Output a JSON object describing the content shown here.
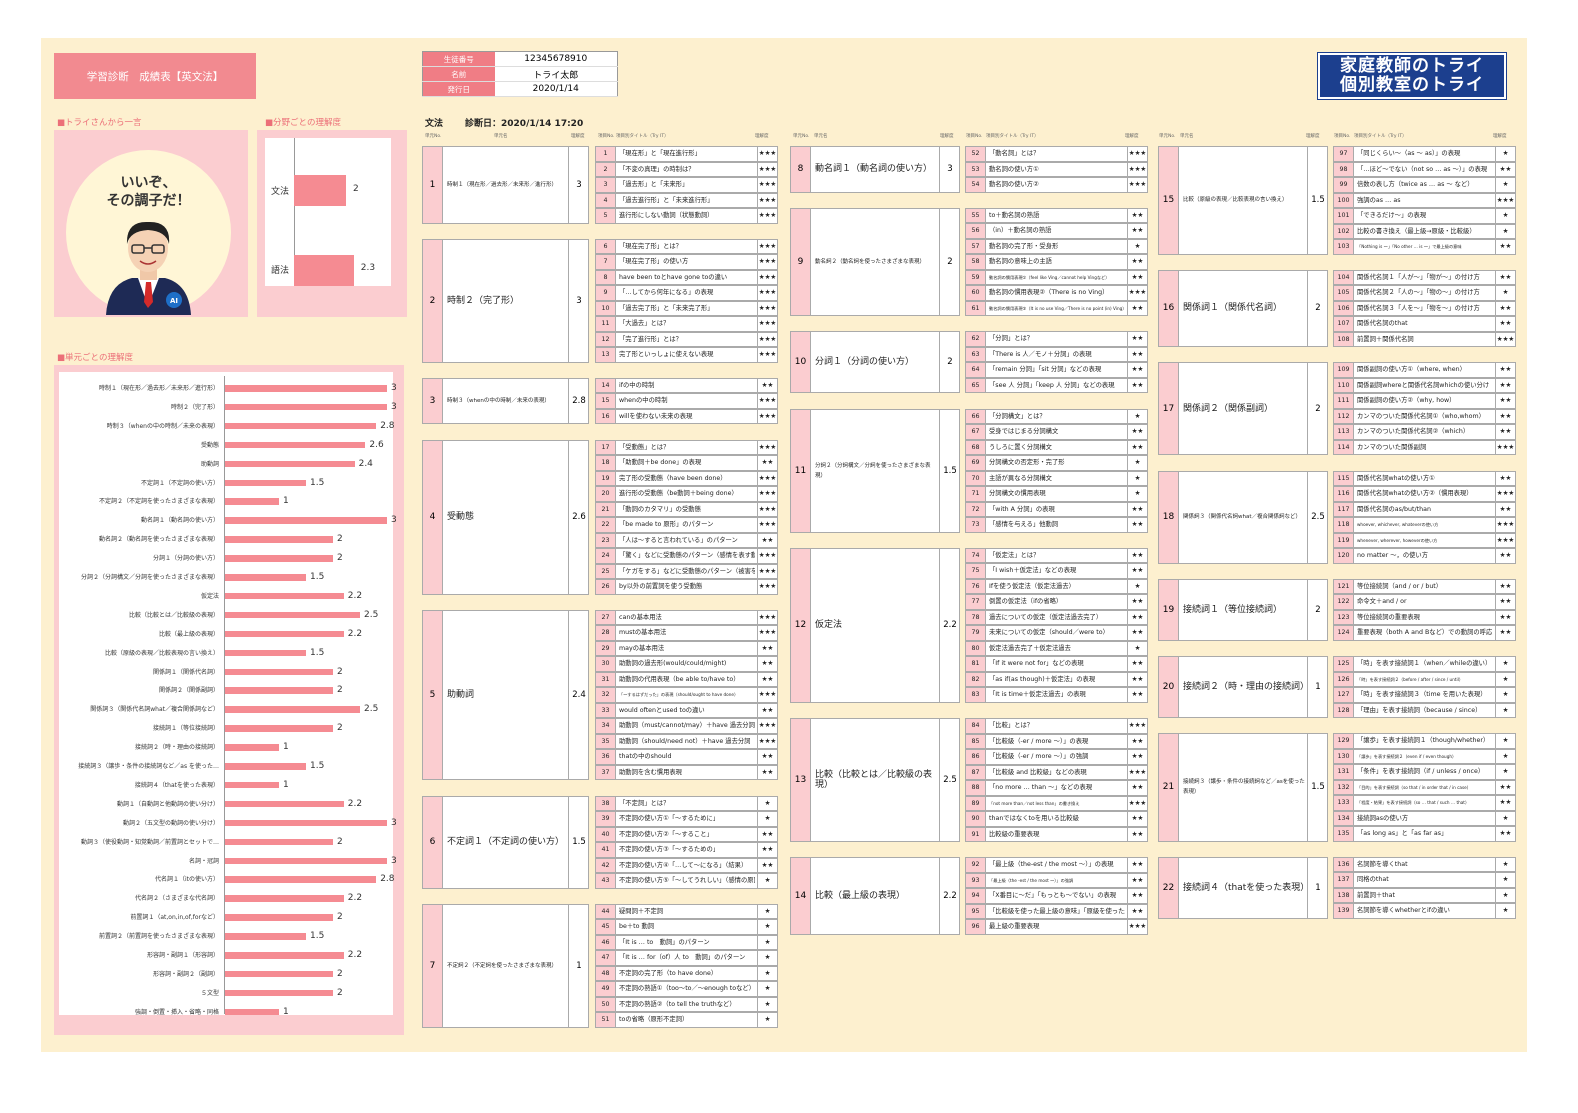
{
  "header": {
    "title": "学習診断　成績表【英文法】",
    "student_no_label": "生徒番号",
    "student_no": "12345678910",
    "name_label": "名前",
    "name": "トライ太郎",
    "date_label": "発行日",
    "date": "2020/1/14",
    "logo_line1": "家庭教師のトライ",
    "logo_line2": "個別教室のトライ"
  },
  "comment": {
    "heading": "■トライさんから一言",
    "line1": "いいぞ、",
    "line2": "その調子だ！"
  },
  "domain": {
    "heading": "■分野ごとの理解度",
    "items": [
      {
        "label": "文法",
        "value": 2
      },
      {
        "label": "語法",
        "value": 2.3
      }
    ]
  },
  "units_chart": {
    "heading": "■単元ごとの理解度"
  },
  "subheader": {
    "subject": "文法",
    "diagnosis": "診断日：2020/1/14 17:20"
  },
  "col_headers": {
    "unit_no": "単元No.",
    "unit_name": "単元名",
    "understanding": "理解度",
    "topic_no": "項目No.",
    "topic_title": "項目別タイトル（Try IT）"
  },
  "chart_data": {
    "type": "bar",
    "orientation": "horizontal",
    "xlim": [
      0,
      3
    ],
    "categories": [
      "時制１（現在形／過去形／未来形／進行形）",
      "時制２（完了形）",
      "時制３（whenの中の時制／未来の表現）",
      "受動態",
      "助動詞",
      "不定詞１（不定詞の使い方）",
      "不定詞２（不定詞を使ったさまざまな表現）",
      "動名詞１（動名詞の使い方）",
      "動名詞２（動名詞を使ったさまざまな表現）",
      "分詞１（分詞の使い方）",
      "分詞２（分詞構文／分詞を使ったさまざまな表現）",
      "仮定法",
      "比較（比較とは／比較級の表現）",
      "比較（最上級の表現）",
      "比較（原級の表現／比較表現の言い換え）",
      "関係詞１（関係代名詞）",
      "関係詞２（関係副詞）",
      "関係詞３（関係代名詞what／複合関係詞など）",
      "接続詞１（等位接続詞）",
      "接続詞２（時・理由の接続詞）",
      "接続詞３（譲歩・条件の接続詞など／as を使った…",
      "接続詞４（thatを使った表現）",
      "動詞１（自動詞と他動詞の使い分け）",
      "動詞２（五文型の動詞の使い分け）",
      "動詞３（使役動詞・知覚動詞／前置詞とセットで…",
      "名詞・冠詞",
      "代名詞１（itの使い方）",
      "代名詞２（さまざまな代名詞）",
      "前置詞１（at,on,in,of,forなど）",
      "前置詞２（前置詞を使ったさまざまな表現）",
      "形容詞・副詞１（形容詞）",
      "形容詞・副詞２（副詞）",
      "５文型",
      "強調・倒置・挿入・省略・同格"
    ],
    "values": [
      3,
      3,
      2.8,
      2.6,
      2.4,
      1.5,
      1,
      3,
      2,
      2,
      1.5,
      2.2,
      2.5,
      2.2,
      1.5,
      2,
      2,
      2.5,
      2,
      1,
      1.5,
      1,
      2.2,
      3,
      2,
      3,
      2.8,
      2.2,
      2,
      1.5,
      2.2,
      2,
      2,
      1
    ]
  },
  "units": [
    {
      "no": "1",
      "name": "時制１（現在形／過去形／未来形／進行形）",
      "score": "3",
      "topics": [
        [
          "1",
          "「現在形」と「現在進行形」",
          "★★★"
        ],
        [
          "2",
          "「不変の真理」の時制は？",
          "★★★"
        ],
        [
          "3",
          "「過去形」と「未来形」",
          "★★★"
        ],
        [
          "4",
          "「過去進行形」と「未来進行形」",
          "★★★"
        ],
        [
          "5",
          "進行形にしない動詞（状態動詞）",
          "★★★"
        ]
      ]
    },
    {
      "no": "2",
      "name": "時制２（完了形）",
      "score": "3",
      "topics": [
        [
          "6",
          "「現在完了形」とは？",
          "★★★"
        ],
        [
          "7",
          "「現在完了形」の使い方",
          "★★★"
        ],
        [
          "8",
          "have been toとhave gone toの違い",
          "★★★"
        ],
        [
          "9",
          "「…してから何年になる」の表現",
          "★★★"
        ],
        [
          "10",
          "「過去完了形」と「未来完了形」",
          "★★★"
        ],
        [
          "11",
          "「大過去」とは？",
          "★★★"
        ],
        [
          "12",
          "「完了進行形」とは？",
          "★★★"
        ],
        [
          "13",
          "完了形といっしょに使えない表現",
          "★★★"
        ]
      ]
    },
    {
      "no": "3",
      "name": "時制３（whenの中の時制／未来の表現）",
      "score": "2.8",
      "topics": [
        [
          "14",
          "ifの中の時制",
          "★★"
        ],
        [
          "15",
          "whenの中の時制",
          "★★★"
        ],
        [
          "16",
          "willを使わない未来の表現",
          "★★★"
        ]
      ]
    },
    {
      "no": "4",
      "name": "受動態",
      "score": "2.6",
      "topics": [
        [
          "17",
          "「受動態」とは？",
          "★★★"
        ],
        [
          "18",
          "「助動詞＋be done」の表現",
          "★★"
        ],
        [
          "19",
          "完了形の受動態（have been done）",
          "★★★"
        ],
        [
          "20",
          "進行形の受動態（be動詞＋being done）",
          "★★★"
        ],
        [
          "21",
          "「動詞のカタマリ」の受動態",
          "★★★"
        ],
        [
          "22",
          "「be made to 原形」のパターン",
          "★★★"
        ],
        [
          "23",
          "「人は～すると言われている」のパターン",
          "★★"
        ],
        [
          "24",
          "「驚く」などに受動態のパターン（感情を表す動詞）",
          "★★★"
        ],
        [
          "25",
          "「ケガをする」などに受動態のパターン（被害を表す動詞）",
          "★★★"
        ],
        [
          "26",
          "by以外の前置詞を使う受動態",
          "★★★"
        ]
      ]
    },
    {
      "no": "5",
      "name": "助動詞",
      "score": "2.4",
      "topics": [
        [
          "27",
          "canの基本用法",
          "★★★"
        ],
        [
          "28",
          "mustの基本用法",
          "★★★"
        ],
        [
          "29",
          "mayの基本用法",
          "★★"
        ],
        [
          "30",
          "助動詞の過去形(would/could/might)",
          "★★"
        ],
        [
          "31",
          "助動詞の代用表現（be able to/have to）",
          "★★"
        ],
        [
          "32",
          "「～するはずだった」の表現（should/ought to have done）",
          "★★★"
        ],
        [
          "33",
          "would oftenとused toの違い",
          "★★"
        ],
        [
          "34",
          "助動詞（must/cannot/may）＋have 過去分詞",
          "★★★"
        ],
        [
          "35",
          "助動詞（should/need not）＋have 過去分詞",
          "★★★"
        ],
        [
          "36",
          "thatの中のshould",
          "★★"
        ],
        [
          "37",
          "助動詞を含む慣用表現",
          "★★"
        ]
      ]
    },
    {
      "no": "6",
      "name": "不定詞１（不定詞の使い方）",
      "score": "1.5",
      "topics": [
        [
          "38",
          "「不定詞」とは？",
          "★"
        ],
        [
          "39",
          "不定詞の使い方①「～するために」",
          "★"
        ],
        [
          "40",
          "不定詞の使い方②「～すること」",
          "★★"
        ],
        [
          "41",
          "不定詞の使い方③「～するための」",
          "★★"
        ],
        [
          "42",
          "不定詞の使い方④「…して～になる」（結果）",
          "★★"
        ],
        [
          "43",
          "不定詞の使い方⑤「～してうれしい」（感情の原因）",
          "★"
        ]
      ]
    },
    {
      "no": "7",
      "name": "不定詞２（不定詞を使ったさまざまな表現）",
      "score": "1",
      "topics": [
        [
          "44",
          "疑問詞＋不定詞",
          "★"
        ],
        [
          "45",
          "be＋to 動詞",
          "★"
        ],
        [
          "46",
          "「It is … to　動詞」のパターン",
          "★"
        ],
        [
          "47",
          "「It is … for（of）人 to　動詞」のパターン",
          "★"
        ],
        [
          "48",
          "不定詞の完了形（to have done）",
          "★"
        ],
        [
          "49",
          "不定詞の熟語①（too～to／～enough toなど）",
          "★"
        ],
        [
          "50",
          "不定詞の熟語②（to tell the truthなど）",
          "★"
        ],
        [
          "51",
          "toの省略（原形不定詞）",
          "★"
        ]
      ]
    },
    {
      "no": "8",
      "name": "動名詞１（動名詞の使い方）",
      "score": "3",
      "topics": [
        [
          "52",
          "「動名詞」とは？",
          "★★★"
        ],
        [
          "53",
          "動名詞の使い方①",
          "★★★"
        ],
        [
          "54",
          "動名詞の使い方②",
          "★★★"
        ]
      ]
    },
    {
      "no": "9",
      "name": "動名詞２（動名詞を使ったさまざまな表現）",
      "score": "2",
      "topics": [
        [
          "55",
          "to＋動名詞の熟語",
          "★★"
        ],
        [
          "56",
          "（in）＋動名詞の熟語",
          "★★"
        ],
        [
          "57",
          "動名詞の完了形・受身形",
          "★"
        ],
        [
          "58",
          "動名詞の意味上の主語",
          "★★"
        ],
        [
          "59",
          "動名詞の慣用表現①（feel like Ving／cannot help Vingなど）",
          "★★"
        ],
        [
          "60",
          "動名詞の慣用表現②（There is no Ving）",
          "★★★"
        ],
        [
          "61",
          "動名詞の慣用表現③（It is no use Ving／There is no point (in) Ving）",
          "★★"
        ]
      ]
    },
    {
      "no": "10",
      "name": "分詞１（分詞の使い方）",
      "score": "2",
      "topics": [
        [
          "62",
          "「分詞」とは？",
          "★★"
        ],
        [
          "63",
          "「There is 人／モノ＋分詞」の表現",
          "★★"
        ],
        [
          "64",
          "「remain 分詞」「sit 分詞」などの表現",
          "★★"
        ],
        [
          "65",
          "「see 人 分詞」「keep 人 分詞」などの表現",
          "★★"
        ]
      ]
    },
    {
      "no": "11",
      "name": "分詞２（分詞構文／分詞を使ったさまざまな表現）",
      "score": "1.5",
      "topics": [
        [
          "66",
          "「分詞構文」とは？",
          "★"
        ],
        [
          "67",
          "受身ではじまる分詞構文",
          "★★"
        ],
        [
          "68",
          "うしろに置く分詞構文",
          "★★"
        ],
        [
          "69",
          "分詞構文の否定形・完了形",
          "★"
        ],
        [
          "70",
          "主語が異なる分詞構文",
          "★"
        ],
        [
          "71",
          "分詞構文の慣用表現",
          "★"
        ],
        [
          "72",
          "「with A 分詞」の表現",
          "★★"
        ],
        [
          "73",
          "「感情を与える」他動詞",
          "★★"
        ]
      ]
    },
    {
      "no": "12",
      "name": "仮定法",
      "score": "2.2",
      "topics": [
        [
          "74",
          "「仮定法」とは？",
          "★★"
        ],
        [
          "75",
          "「I wish＋仮定法」などの表現",
          "★★"
        ],
        [
          "76",
          "Ifを使う仮定法（仮定法過去）",
          "★"
        ],
        [
          "77",
          "倒置の仮定法（ifの省略）",
          "★★"
        ],
        [
          "78",
          "過去についての仮定（仮定法過去完了）",
          "★★"
        ],
        [
          "79",
          "未来についての仮定（should／were to）",
          "★★"
        ],
        [
          "80",
          "仮定法過去完了＋仮定法過去",
          "★"
        ],
        [
          "81",
          "「If it were not for」などの表現",
          "★★"
        ],
        [
          "82",
          "「as if(as though)＋仮定法」の表現",
          "★★"
        ],
        [
          "83",
          "「It is time＋仮定法過去」の表現",
          "★★"
        ]
      ]
    },
    {
      "no": "13",
      "name": "比較（比較とは／比較級の表現）",
      "score": "2.5",
      "topics": [
        [
          "84",
          "「比較」とは？",
          "★★★"
        ],
        [
          "85",
          "「比較級（-er / more ～）」の表現",
          "★★"
        ],
        [
          "86",
          "「比較級（-er / more ～）」の強調",
          "★★"
        ],
        [
          "87",
          "「比較級 and 比較級」などの表現",
          "★★★"
        ],
        [
          "88",
          "「no more … than ～」などの表現",
          "★★"
        ],
        [
          "89",
          "「not more than／not less than」の書き換え",
          "★★★"
        ],
        [
          "90",
          "thanではなくtoを用いる比較級",
          "★★"
        ],
        [
          "91",
          "比較級の重要表現",
          "★★"
        ]
      ]
    },
    {
      "no": "14",
      "name": "比較（最上級の表現）",
      "score": "2.2",
      "topics": [
        [
          "92",
          "「最上級（the-est / the most ～）」の表現",
          "★★"
        ],
        [
          "93",
          "「最上級（the -est / the most ～）」の強調",
          "★★"
        ],
        [
          "94",
          "「X番目に～だ」「もっとも～でない」の表現",
          "★★"
        ],
        [
          "95",
          "「比較級を使った最上級の意味」「原級を使った最上級の意味」",
          "★★"
        ],
        [
          "96",
          "最上級の重要表現",
          "★★★"
        ]
      ]
    },
    {
      "no": "15",
      "name": "比較（原級の表現／比較表現の言い換え）",
      "score": "1.5",
      "topics": [
        [
          "97",
          "「同じくらい～（as ～ as）」の表現",
          "★"
        ],
        [
          "98",
          "「…ほど～でない（not so … as ～）」の表現",
          "★★"
        ],
        [
          "99",
          "倍数の表し方（twice as … as ～ など）",
          "★"
        ],
        [
          "100",
          "強調のas … as",
          "★★★"
        ],
        [
          "101",
          "「できるだけ～」の表現",
          "★"
        ],
        [
          "102",
          "比較の書き換え（最上級→原級・比較級）",
          "★"
        ],
        [
          "103",
          "「Nothing is ～」「No other … is ～」で最上級の意味",
          "★★"
        ]
      ]
    },
    {
      "no": "16",
      "name": "関係詞１（関係代名詞）",
      "score": "2",
      "topics": [
        [
          "104",
          "関係代名詞１「人が～」「物が～」の付け方",
          "★★"
        ],
        [
          "105",
          "関係代名詞２「人の～」「物の～」の付け方",
          "★"
        ],
        [
          "106",
          "関係代名詞３「人を～」「物を～」の付け方",
          "★★"
        ],
        [
          "107",
          "関係代名詞のthat",
          "★★"
        ],
        [
          "108",
          "前置詞＋関係代名詞",
          "★★★"
        ]
      ]
    },
    {
      "no": "17",
      "name": "関係詞２（関係副詞）",
      "score": "2",
      "topics": [
        [
          "109",
          "関係副詞の使い方①（where, when）",
          "★★"
        ],
        [
          "110",
          "関係副詞whereと関係代名詞whichの使い分け",
          "★★"
        ],
        [
          "111",
          "関係副詞の使い方②（why, how）",
          "★★"
        ],
        [
          "112",
          "カンマのついた関係代名詞①（who,whom）",
          "★★"
        ],
        [
          "113",
          "カンマのついた関係代名詞②（which）",
          "★★"
        ],
        [
          "114",
          "カンマのついた関係副詞",
          "★★★"
        ]
      ]
    },
    {
      "no": "18",
      "name": "関係詞３（関係代名詞what／複合関係詞など）",
      "score": "2.5",
      "topics": [
        [
          "115",
          "関係代名詞whatの使い方①",
          "★★"
        ],
        [
          "116",
          "関係代名詞whatの使い方②（慣用表現）",
          "★★★"
        ],
        [
          "117",
          "関係代名詞のas/but/than",
          "★★"
        ],
        [
          "118",
          "whoever, whichever, whateverの使い方",
          "★★★"
        ],
        [
          "119",
          "whenever, wherever, howeverの使い方",
          "★★★"
        ],
        [
          "120",
          "no matter ～，の使い方",
          "★★"
        ]
      ]
    },
    {
      "no": "19",
      "name": "接続詞１（等位接続詞）",
      "score": "2",
      "topics": [
        [
          "121",
          "等位接続詞（and / or / but）",
          "★★"
        ],
        [
          "122",
          "命令文＋and / or",
          "★★"
        ],
        [
          "123",
          "等位接続詞の重要表現",
          "★★"
        ],
        [
          "124",
          "重要表現（both A and Bなど）での動詞の呼応",
          "★★"
        ]
      ]
    },
    {
      "no": "20",
      "name": "接続詞２（時・理由の接続詞）",
      "score": "1",
      "topics": [
        [
          "125",
          "「時」を表す接続詞１（when／whileの違い）",
          "★"
        ],
        [
          "126",
          "「時」を表す接続詞２（before / after / since / until）",
          "★"
        ],
        [
          "127",
          "「時」を表す接続詞３（time を用いた表現）",
          "★"
        ],
        [
          "128",
          "「理由」を表す接続詞（because / since）",
          "★"
        ]
      ]
    },
    {
      "no": "21",
      "name": "接続詞３（譲歩・条件の接続詞など／asを使った表現）",
      "score": "1.5",
      "topics": [
        [
          "129",
          "「譲歩」を表す接続詞１（though/whether）",
          "★"
        ],
        [
          "130",
          "「譲歩」を表す接続詞２（even if / even though）",
          "★"
        ],
        [
          "131",
          "「条件」を表す接続詞（if / unless / once）",
          "★"
        ],
        [
          "132",
          "「目的」を表す接続詞（so that / in order that / in case）",
          "★★"
        ],
        [
          "133",
          "「程度・結果」を表す接続詞（so … that / such … that）",
          "★★"
        ],
        [
          "134",
          "接続詞asの使い方",
          "★"
        ],
        [
          "135",
          "「as long as」と「as far as」",
          "★★"
        ]
      ]
    },
    {
      "no": "22",
      "name": "接続詞４（thatを使った表現）",
      "score": "1",
      "topics": [
        [
          "136",
          "名詞節を導くthat",
          "★"
        ],
        [
          "137",
          "同格のthat",
          "★"
        ],
        [
          "138",
          "前置詞＋that",
          "★"
        ],
        [
          "139",
          "名詞節を導くwhetherとifの違い",
          "★"
        ]
      ]
    }
  ]
}
